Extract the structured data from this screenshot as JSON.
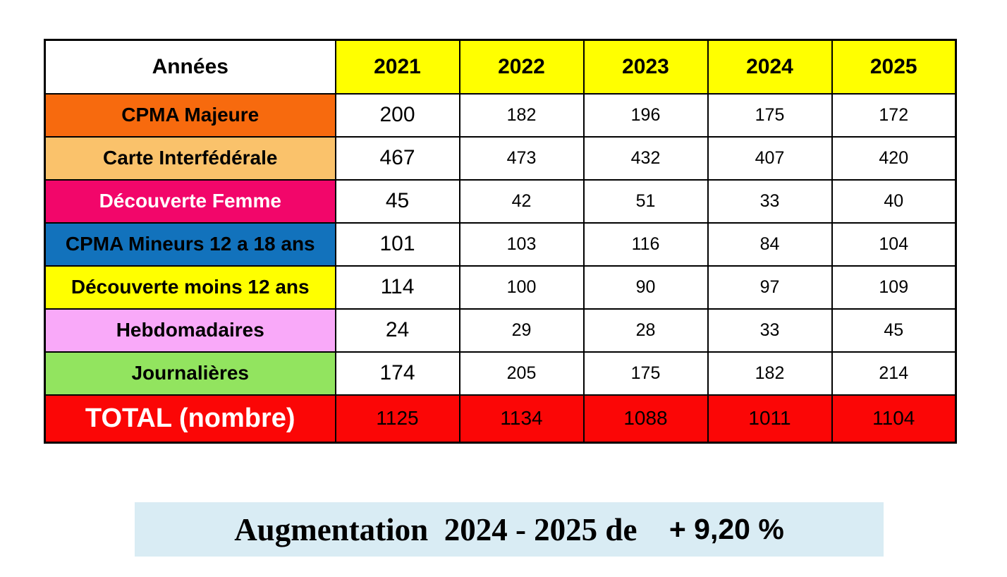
{
  "table": {
    "corner_label": "Années",
    "header_bg": "#FFFF00",
    "years": [
      "2021",
      "2022",
      "2023",
      "2024",
      "2025"
    ],
    "rows": [
      {
        "label": "CPMA Majeure",
        "bg": "#F76A0E",
        "fg": "#000000",
        "values": [
          "200",
          "182",
          "196",
          "175",
          "172"
        ]
      },
      {
        "label": "Carte Interfédérale",
        "bg": "#FAC26B",
        "fg": "#000000",
        "values": [
          "467",
          "473",
          "432",
          "407",
          "420"
        ]
      },
      {
        "label": "Découverte Femme",
        "bg": "#F2066A",
        "fg": "#FFFFFF",
        "values": [
          "45",
          "42",
          "51",
          "33",
          "40"
        ]
      },
      {
        "label": "CPMA Mineurs 12 a 18 ans",
        "bg": "#1272BC",
        "fg": "#000000",
        "values": [
          "101",
          "103",
          "116",
          "84",
          "104"
        ]
      },
      {
        "label": "Découverte moins 12 ans",
        "bg": "#FFFF00",
        "fg": "#000000",
        "values": [
          "114",
          "100",
          "90",
          "97",
          "109"
        ]
      },
      {
        "label": "Hebdomadaires",
        "bg": "#F9A9F9",
        "fg": "#000000",
        "values": [
          "24",
          "29",
          "28",
          "33",
          "45"
        ]
      },
      {
        "label": "Journalières",
        "bg": "#92E45F",
        "fg": "#000000",
        "values": [
          "174",
          "205",
          "175",
          "182",
          "214"
        ]
      }
    ],
    "total_row": {
      "label": "TOTAL (nombre)",
      "bg": "#FB0606",
      "fg": "#FFFFFF",
      "values": [
        "1125",
        "1134",
        "1088",
        "1011",
        "1104"
      ]
    }
  },
  "banner": {
    "bg": "#D9ECF4",
    "text_main": "Augmentation  2024 - 2025 de",
    "text_value": " + 9,20 %"
  }
}
